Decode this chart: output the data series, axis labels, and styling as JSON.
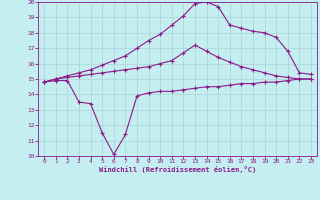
{
  "xlabel": "Windchill (Refroidissement éolien,°C)",
  "xlim": [
    -0.5,
    23.5
  ],
  "ylim": [
    10,
    20
  ],
  "xticks": [
    0,
    1,
    2,
    3,
    4,
    5,
    6,
    7,
    8,
    9,
    10,
    11,
    12,
    13,
    14,
    15,
    16,
    17,
    18,
    19,
    20,
    21,
    22,
    23
  ],
  "yticks": [
    10,
    11,
    12,
    13,
    14,
    15,
    16,
    17,
    18,
    19,
    20
  ],
  "background_color": "#c4eef0",
  "line_color": "#8b1a8a",
  "grid_color": "#aad4d8",
  "line1_x": [
    0,
    1,
    2,
    3,
    4,
    5,
    6,
    7,
    8,
    9,
    10,
    11,
    12,
    13,
    14,
    15,
    16,
    17,
    18,
    19,
    20,
    21,
    22,
    23
  ],
  "line1_y": [
    14.8,
    14.9,
    14.9,
    13.5,
    13.4,
    11.5,
    10.1,
    11.4,
    13.9,
    14.1,
    14.2,
    14.2,
    14.3,
    14.4,
    14.5,
    14.5,
    14.6,
    14.7,
    14.7,
    14.8,
    14.8,
    14.9,
    15.0,
    15.0
  ],
  "line2_x": [
    0,
    1,
    2,
    3,
    4,
    5,
    6,
    7,
    8,
    9,
    10,
    11,
    12,
    13,
    14,
    15,
    16,
    17,
    18,
    19,
    20,
    21,
    22,
    23
  ],
  "line2_y": [
    14.8,
    15.0,
    15.1,
    15.2,
    15.3,
    15.4,
    15.5,
    15.6,
    15.7,
    15.8,
    16.0,
    16.2,
    16.7,
    17.2,
    16.8,
    16.4,
    16.1,
    15.8,
    15.6,
    15.4,
    15.2,
    15.1,
    15.0,
    15.0
  ],
  "line3_x": [
    0,
    1,
    2,
    3,
    4,
    5,
    6,
    7,
    8,
    9,
    10,
    11,
    12,
    13,
    14,
    15,
    16,
    17,
    18,
    19,
    20,
    21,
    22,
    23
  ],
  "line3_y": [
    14.8,
    15.0,
    15.2,
    15.4,
    15.6,
    15.9,
    16.2,
    16.5,
    17.0,
    17.5,
    17.9,
    18.5,
    19.1,
    19.9,
    20.0,
    19.7,
    18.5,
    18.3,
    18.1,
    18.0,
    17.7,
    16.8,
    15.4,
    15.3
  ]
}
